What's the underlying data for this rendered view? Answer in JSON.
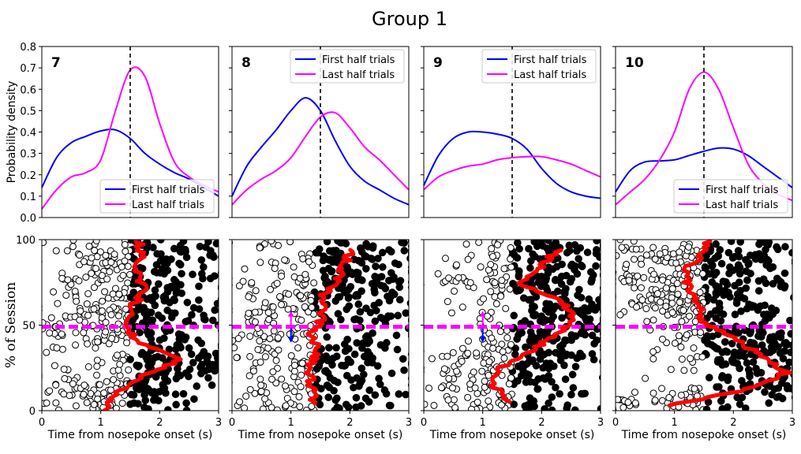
{
  "figure_title": "Group 1",
  "chart_data": [
    {
      "type": "line",
      "panel": "density",
      "label": "7",
      "ylabel": "Probability density",
      "xlim": [
        0,
        3
      ],
      "ylim": [
        0,
        0.8
      ],
      "yticks": [
        "0.0",
        "0.1",
        "0.2",
        "0.3",
        "0.4",
        "0.5",
        "0.6",
        "0.7",
        "0.8"
      ],
      "vline": 1.5,
      "legend_position": "lower-right",
      "x": [
        0,
        0.25,
        0.5,
        0.75,
        1.0,
        1.25,
        1.5,
        1.75,
        2.0,
        2.25,
        2.5,
        2.75,
        3.0
      ],
      "series": [
        {
          "name": "First half trials",
          "color": "#0000ff",
          "values": [
            0.14,
            0.28,
            0.35,
            0.38,
            0.405,
            0.41,
            0.37,
            0.3,
            0.25,
            0.21,
            0.18,
            0.14,
            0.1
          ]
        },
        {
          "name": "Last half trials",
          "color": "#ff00ff",
          "values": [
            0.04,
            0.13,
            0.19,
            0.21,
            0.27,
            0.5,
            0.69,
            0.66,
            0.44,
            0.26,
            0.19,
            0.15,
            0.12
          ]
        }
      ]
    },
    {
      "type": "line",
      "panel": "density",
      "label": "8",
      "xlim": [
        0,
        3
      ],
      "ylim": [
        0,
        0.8
      ],
      "vline": 1.5,
      "legend_position": "top-right",
      "x": [
        0,
        0.25,
        0.5,
        0.75,
        1.0,
        1.25,
        1.5,
        1.75,
        2.0,
        2.25,
        2.5,
        2.75,
        3.0
      ],
      "series": [
        {
          "name": "First half trials",
          "color": "#0000ff",
          "values": [
            0.1,
            0.24,
            0.33,
            0.41,
            0.5,
            0.56,
            0.5,
            0.36,
            0.24,
            0.17,
            0.13,
            0.09,
            0.06
          ]
        },
        {
          "name": "Last half trials",
          "color": "#ff00ff",
          "values": [
            0.06,
            0.13,
            0.18,
            0.22,
            0.28,
            0.38,
            0.47,
            0.49,
            0.42,
            0.33,
            0.27,
            0.2,
            0.13
          ]
        }
      ]
    },
    {
      "type": "line",
      "panel": "density",
      "label": "9",
      "xlim": [
        0,
        3
      ],
      "ylim": [
        0,
        0.8
      ],
      "vline": 1.5,
      "legend_position": "top-right",
      "x": [
        0,
        0.25,
        0.5,
        0.75,
        1.0,
        1.25,
        1.5,
        1.75,
        2.0,
        2.25,
        2.5,
        2.75,
        3.0
      ],
      "series": [
        {
          "name": "First half trials",
          "color": "#0000ff",
          "values": [
            0.15,
            0.29,
            0.37,
            0.4,
            0.4,
            0.39,
            0.37,
            0.32,
            0.23,
            0.16,
            0.12,
            0.1,
            0.09
          ]
        },
        {
          "name": "Last half trials",
          "color": "#ff00ff",
          "values": [
            0.13,
            0.19,
            0.22,
            0.24,
            0.25,
            0.27,
            0.28,
            0.285,
            0.285,
            0.27,
            0.25,
            0.22,
            0.19
          ]
        }
      ]
    },
    {
      "type": "line",
      "panel": "density",
      "label": "10",
      "xlim": [
        0,
        3
      ],
      "ylim": [
        0,
        0.8
      ],
      "vline": 1.5,
      "legend_position": "lower-right",
      "x": [
        0,
        0.25,
        0.5,
        0.75,
        1.0,
        1.25,
        1.5,
        1.75,
        2.0,
        2.25,
        2.5,
        2.75,
        3.0
      ],
      "series": [
        {
          "name": "First half trials",
          "color": "#0000ff",
          "values": [
            0.12,
            0.22,
            0.26,
            0.265,
            0.27,
            0.29,
            0.31,
            0.325,
            0.32,
            0.29,
            0.24,
            0.19,
            0.14
          ]
        },
        {
          "name": "Last half trials",
          "color": "#ff00ff",
          "values": [
            0.06,
            0.12,
            0.18,
            0.27,
            0.4,
            0.6,
            0.68,
            0.6,
            0.42,
            0.25,
            0.16,
            0.11,
            0.08
          ]
        }
      ]
    },
    {
      "type": "scatter",
      "panel": "raster",
      "ylabel": "% of Session",
      "xlabel": "Time from nosepoke onset (s)",
      "xlim": [
        0,
        3
      ],
      "ylim": [
        0,
        100
      ],
      "xticks": [
        "0",
        "1",
        "2",
        "3"
      ],
      "yticks": [
        "0",
        "50",
        "100"
      ],
      "midline": 49,
      "boundary_x": 1.5,
      "n_points": 600,
      "open_marker": "response before boundary",
      "filled_marker": "response after boundary",
      "running_mean": {
        "color": "#ff0000",
        "y": [
          0,
          10,
          20,
          30,
          40,
          50,
          60,
          70,
          80,
          90,
          100
        ],
        "x": [
          1.05,
          1.25,
          1.7,
          2.35,
          1.6,
          1.45,
          1.5,
          1.75,
          1.6,
          1.7,
          1.65
        ]
      }
    },
    {
      "type": "scatter",
      "panel": "raster",
      "xlabel": "Time from nosepoke onset (s)",
      "xlim": [
        0,
        3
      ],
      "ylim": [
        0,
        100
      ],
      "xticks": [
        "0",
        "1",
        "2",
        "3"
      ],
      "midline": 49,
      "boundary_x": 1.4,
      "n_points": 520,
      "arrows": {
        "x": 1.0,
        "up_color": "#ff00ff",
        "down_color": "#0000ff"
      },
      "running_mean": {
        "color": "#ff0000",
        "y": [
          4,
          15,
          25,
          35,
          45,
          55,
          65,
          75,
          85,
          95
        ],
        "x": [
          1.4,
          1.35,
          1.3,
          1.45,
          1.35,
          1.55,
          1.5,
          1.75,
          1.9,
          2.05
        ]
      }
    },
    {
      "type": "scatter",
      "panel": "raster",
      "xlabel": "Time from nosepoke onset (s)",
      "xlim": [
        0,
        3
      ],
      "ylim": [
        0,
        100
      ],
      "xticks": [
        "0",
        "1",
        "2",
        "3"
      ],
      "midline": 49,
      "boundary_x": 1.5,
      "n_points": 560,
      "arrows": {
        "x": 1.0,
        "up_color": "#ff00ff",
        "down_color": "#0000ff"
      },
      "running_mean": {
        "color": "#ff0000",
        "y": [
          5,
          15,
          25,
          35,
          45,
          55,
          65,
          75,
          85,
          95
        ],
        "x": [
          1.45,
          1.15,
          1.3,
          1.8,
          2.3,
          2.55,
          2.3,
          1.6,
          2.0,
          2.3
        ]
      }
    },
    {
      "type": "scatter",
      "panel": "raster",
      "xlabel": "Time from nosepoke onset (s)",
      "xlim": [
        0,
        3
      ],
      "ylim": [
        0,
        100
      ],
      "xticks": [
        "0",
        "1",
        "2",
        "3"
      ],
      "midline": 49,
      "boundary_x": 1.5,
      "n_points": 640,
      "running_mean": {
        "color": "#ff0000",
        "y": [
          3,
          12,
          22,
          32,
          42,
          52,
          62,
          72,
          82,
          92,
          100
        ],
        "x": [
          0.9,
          2.2,
          2.9,
          2.5,
          2.0,
          1.5,
          1.4,
          1.25,
          1.15,
          1.5,
          1.55
        ]
      }
    }
  ]
}
